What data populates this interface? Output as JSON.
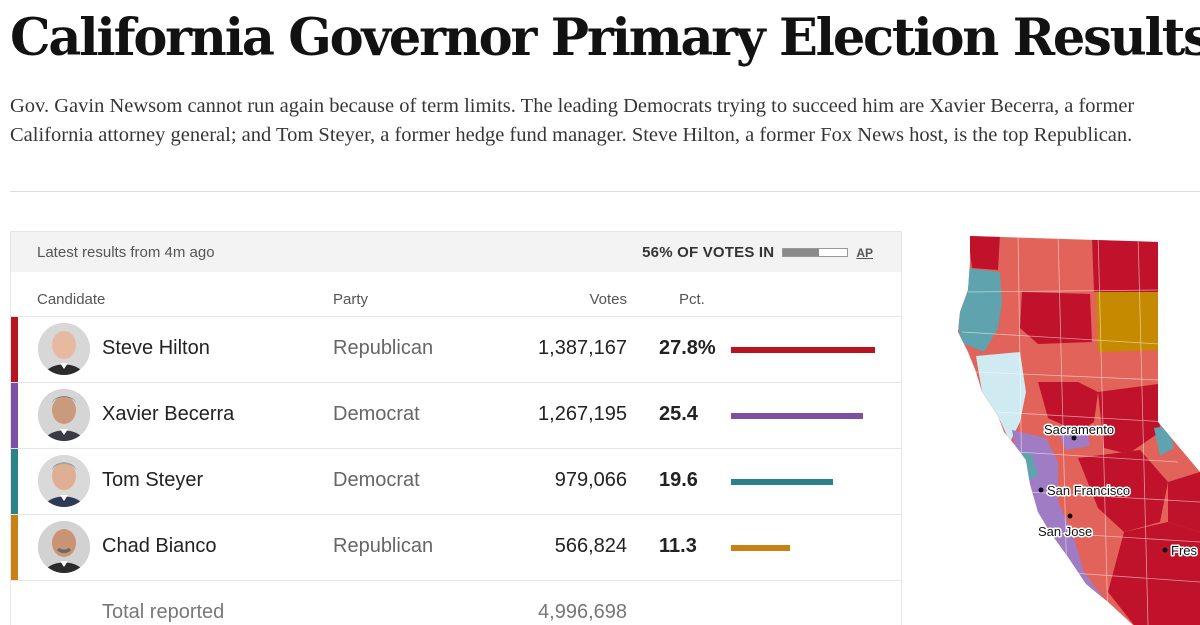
{
  "title": "California Governor Primary Election Results",
  "dek": "Gov. Gavin Newsom cannot run again because of term limits. The leading Democrats trying to succeed him are Xavier Becerra, a former California attorney general; and Tom Steyer, a former hedge fund manager. Steve Hilton, a former Fox News host, is the top Republican.",
  "results": {
    "latest": "Latest results from 4m ago",
    "votes_in_label": "56% OF VOTES IN",
    "votes_in_fraction": 0.56,
    "source": "AP",
    "columns": {
      "candidate": "Candidate",
      "party": "Party",
      "votes": "Votes",
      "pct": "Pct."
    },
    "candidates": [
      {
        "name": "Steve Hilton",
        "party": "Republican",
        "votes": "1,387,167",
        "pct": "27.8%",
        "pct_value": 27.8,
        "color": "#b8141f"
      },
      {
        "name": "Xavier Becerra",
        "party": "Democrat",
        "votes": "1,267,195",
        "pct": "25.4",
        "pct_value": 25.4,
        "color": "#7f4fa6"
      },
      {
        "name": "Tom Steyer",
        "party": "Democrat",
        "votes": "979,066",
        "pct": "19.6",
        "pct_value": 19.6,
        "color": "#2d8188"
      },
      {
        "name": "Chad Bianco",
        "party": "Republican",
        "votes": "566,824",
        "pct": "11.3",
        "pct_value": 11.3,
        "color": "#c98114"
      }
    ],
    "total_label": "Total reported",
    "total_votes": "4,996,698"
  },
  "map": {
    "cities": [
      "Sacramento",
      "San Francisco",
      "San Jose",
      "Fres"
    ],
    "colors": {
      "hilton_strong": "#c0122a",
      "hilton_light": "#e26359",
      "becerra": "#a07cc5",
      "steyer": "#5ea3ad",
      "steyer_light": "#cfeaf1",
      "bianco": "#c58a00"
    }
  }
}
